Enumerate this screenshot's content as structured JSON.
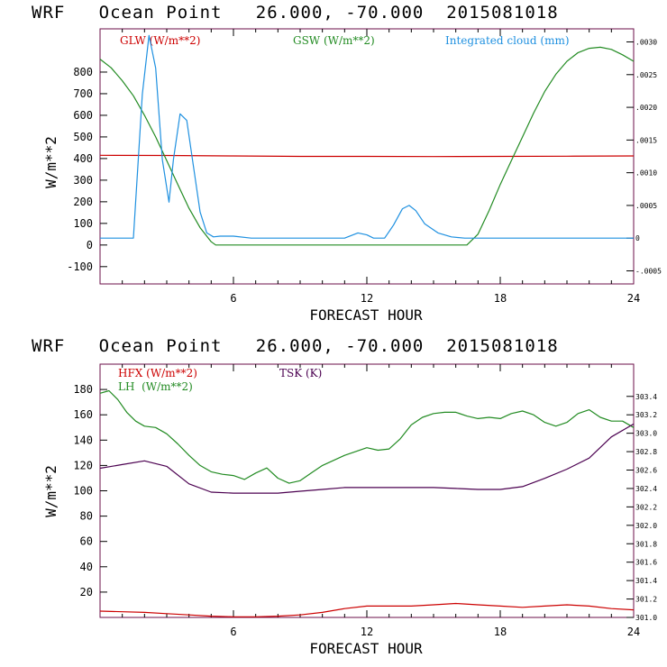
{
  "chart_data": [
    {
      "type": "line",
      "title": "WRF   Ocean Point   26.000, -70.000  2015081018",
      "xlabel": "FORECAST HOUR",
      "ylabel": "W/m**2",
      "xlim": [
        0,
        24
      ],
      "ylim": [
        -180,
        1000
      ],
      "x_ticks": [
        6,
        12,
        18,
        24
      ],
      "y_ticks": [
        -100,
        0,
        100,
        200,
        300,
        400,
        500,
        600,
        700,
        800
      ],
      "right_ylim": [
        -0.0007,
        0.0032
      ],
      "right_ticks": [
        -0.0005,
        0,
        0.0005,
        0.001,
        0.0015,
        0.002,
        0.0025,
        0.003
      ],
      "right_tick_labels": [
        "-.0005",
        "0",
        ".0005",
        ".0010",
        ".0015",
        ".0020",
        ".0025",
        ".0030"
      ],
      "legend": [
        "GLW (W/m**2)",
        "GSW (W/m**2)",
        "Integrated cloud (mm)"
      ],
      "series": [
        {
          "name": "GLW (W/m**2)",
          "color": "#cc0000",
          "axis": "left",
          "x": [
            0,
            3,
            6,
            9,
            12,
            15,
            18,
            21,
            24
          ],
          "values": [
            415,
            414,
            412,
            410,
            410,
            409,
            410,
            411,
            412
          ]
        },
        {
          "name": "GSW (W/m**2)",
          "color": "#228b22",
          "axis": "left",
          "x": [
            0,
            0.5,
            1,
            1.5,
            2,
            2.5,
            3,
            3.5,
            4,
            4.5,
            5,
            5.2,
            16.5,
            17,
            17.5,
            18,
            18.5,
            19,
            19.5,
            20,
            20.5,
            21,
            21.5,
            22,
            22.5,
            23,
            23.5,
            24
          ],
          "values": [
            860,
            820,
            760,
            690,
            600,
            500,
            390,
            280,
            170,
            80,
            15,
            0,
            0,
            50,
            160,
            280,
            390,
            500,
            610,
            710,
            790,
            850,
            890,
            910,
            915,
            905,
            880,
            850
          ]
        },
        {
          "name": "Integrated cloud (mm)",
          "color": "#1e90e0",
          "axis": "right",
          "x": [
            0,
            1.5,
            1.9,
            2.2,
            2.5,
            2.8,
            3.1,
            3.3,
            3.6,
            3.9,
            4.2,
            4.5,
            4.8,
            5.1,
            5.4,
            6,
            6.8,
            11,
            11.6,
            12,
            12.3,
            12.8,
            13.2,
            13.6,
            13.9,
            14.2,
            14.6,
            15.2,
            15.8,
            16.4,
            24
          ],
          "values": [
            0,
            0,
            0.0022,
            0.0031,
            0.0026,
            0.0012,
            0.00055,
            0.0012,
            0.0019,
            0.0018,
            0.0011,
            0.0004,
            8e-05,
            2e-05,
            3e-05,
            3e-05,
            0,
            0,
            8e-05,
            5e-05,
            0,
            0,
            0.0002,
            0.00045,
            0.0005,
            0.00042,
            0.00022,
            8e-05,
            2e-05,
            0,
            0
          ]
        }
      ]
    },
    {
      "type": "line",
      "title": "WRF   Ocean Point   26.000, -70.000  2015081018",
      "xlabel": "FORECAST HOUR",
      "ylabel": "W/m**2",
      "xlim": [
        0,
        24
      ],
      "ylim": [
        0,
        200
      ],
      "x_ticks": [
        6,
        12,
        18,
        24
      ],
      "y_ticks": [
        20,
        40,
        60,
        80,
        100,
        120,
        140,
        160,
        180
      ],
      "right_ylim": [
        301.0,
        303.75
      ],
      "right_ticks": [
        301.0,
        301.2,
        301.4,
        301.6,
        301.8,
        302.0,
        302.2,
        302.4,
        302.6,
        302.8,
        303.0,
        303.2,
        303.4
      ],
      "right_tick_labels": [
        "301.0",
        "301.2",
        "301.4",
        "301.6",
        "301.8",
        "302.0",
        "302.2",
        "302.4",
        "302.6",
        "302.8",
        "303.0",
        "303.2",
        "303.4"
      ],
      "legend": [
        "HFX (W/m**2)",
        "LH  (W/m**2)",
        "TSK (K)"
      ],
      "series": [
        {
          "name": "HFX (W/m**2)",
          "color": "#cc0000",
          "axis": "left",
          "x": [
            0,
            1,
            2,
            3,
            4,
            5,
            6,
            7,
            8,
            9,
            10,
            11,
            12,
            13,
            14,
            15,
            16,
            17,
            18,
            19,
            20,
            21,
            22,
            23,
            24
          ],
          "values": [
            5,
            4.5,
            4,
            3,
            2,
            1,
            0.5,
            0.5,
            1,
            2,
            4,
            7,
            9,
            9,
            9,
            10,
            11,
            10,
            9,
            8,
            9,
            10,
            9,
            7,
            6
          ]
        },
        {
          "name": "LH  (W/m**2)",
          "color": "#228b22",
          "axis": "left",
          "x": [
            0,
            0.4,
            0.8,
            1.2,
            1.6,
            2,
            2.5,
            3,
            3.5,
            4,
            4.5,
            5,
            5.5,
            6,
            6.5,
            7,
            7.5,
            8,
            8.5,
            9,
            9.5,
            10,
            10.5,
            11,
            11.5,
            12,
            12.5,
            13,
            13.5,
            14,
            14.5,
            15,
            15.5,
            16,
            16.5,
            17,
            17.5,
            18,
            18.5,
            19,
            19.5,
            20,
            20.5,
            21,
            21.5,
            22,
            22.5,
            23,
            23.5,
            24
          ],
          "values": [
            177,
            179,
            172,
            162,
            155,
            151,
            150,
            145,
            137,
            128,
            120,
            115,
            113,
            112,
            109,
            114,
            118,
            110,
            106,
            108,
            114,
            120,
            124,
            128,
            131,
            134,
            132,
            133,
            141,
            152,
            158,
            161,
            162,
            162,
            159,
            157,
            158,
            157,
            161,
            163,
            160,
            154,
            151,
            154,
            161,
            164,
            158,
            155,
            155,
            150
          ]
        },
        {
          "name": "TSK (K)",
          "color": "#4b0050",
          "axis": "right",
          "x": [
            0,
            1,
            2,
            3,
            4,
            5,
            6,
            7,
            8,
            9,
            10,
            11,
            12,
            13,
            14,
            15,
            16,
            17,
            18,
            19,
            20,
            21,
            22,
            23,
            24
          ],
          "values": [
            302.62,
            302.66,
            302.7,
            302.64,
            302.45,
            302.36,
            302.35,
            302.35,
            302.35,
            302.37,
            302.39,
            302.41,
            302.41,
            302.41,
            302.41,
            302.41,
            302.4,
            302.39,
            302.39,
            302.42,
            302.51,
            302.61,
            302.73,
            302.96,
            303.1
          ]
        }
      ]
    }
  ]
}
